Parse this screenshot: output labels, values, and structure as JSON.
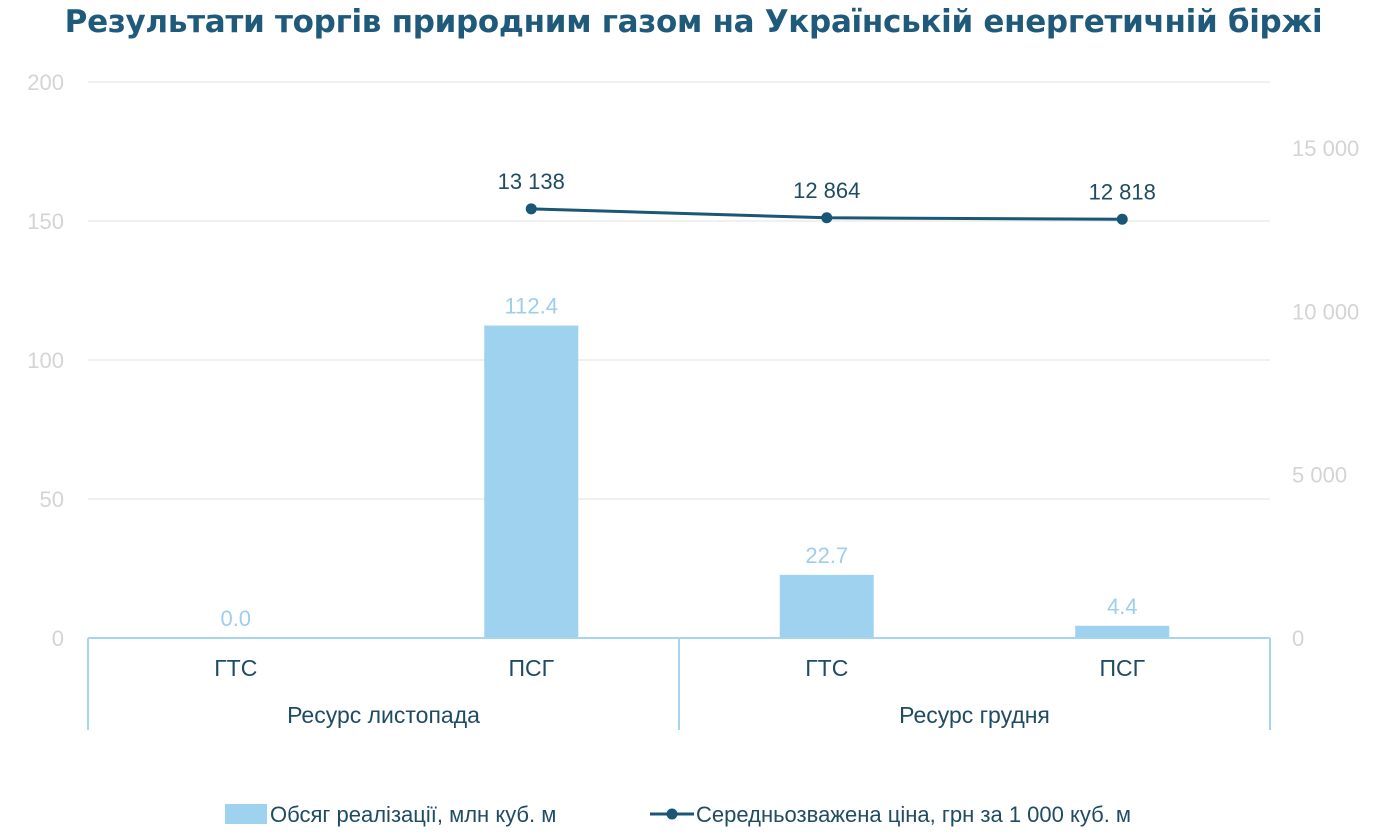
{
  "chart_data": {
    "type": "bar",
    "title": "Результати торгів природним газом на Українській енергетичній біржі",
    "groups": [
      {
        "label": "Ресурс листопада",
        "categories": [
          "ГТС",
          "ПСГ"
        ]
      },
      {
        "label": "Ресурс грудня",
        "categories": [
          "ГТС",
          "ПСГ"
        ]
      }
    ],
    "categories": [
      "ГТС",
      "ПСГ",
      "ГТС",
      "ПСГ"
    ],
    "series": [
      {
        "name": "Обсяг реалізації, млн куб. м",
        "type": "bar",
        "axis": "left",
        "color": "#9ed2ee",
        "values": [
          0.0,
          112.4,
          22.7,
          4.4
        ],
        "labels": [
          "0.0",
          "112.4",
          "22.7",
          "4.4"
        ]
      },
      {
        "name": "Середньозважена ціна, грн за 1 000 куб. м",
        "type": "line",
        "axis": "right",
        "color": "#1a5675",
        "values": [
          null,
          13138,
          12864,
          12818
        ],
        "labels": [
          "",
          "13 138",
          "12 864",
          "12 818"
        ]
      }
    ],
    "y_left": {
      "min": 0,
      "max": 200,
      "ticks": [
        0,
        50,
        100,
        150,
        200
      ],
      "tick_labels": [
        "0",
        "50",
        "100",
        "150",
        "200"
      ]
    },
    "y_right": {
      "min": 0,
      "max": 17000,
      "ticks": [
        0,
        5000,
        10000,
        15000
      ],
      "tick_labels": [
        "0",
        "5 000",
        "10 000",
        "15 000"
      ]
    },
    "grid": true,
    "legend_position": "bottom"
  },
  "colors": {
    "title": "#1f5a7a",
    "text": "#1f4b63",
    "grid": "#ececec",
    "axis": "#a6d6ef"
  }
}
